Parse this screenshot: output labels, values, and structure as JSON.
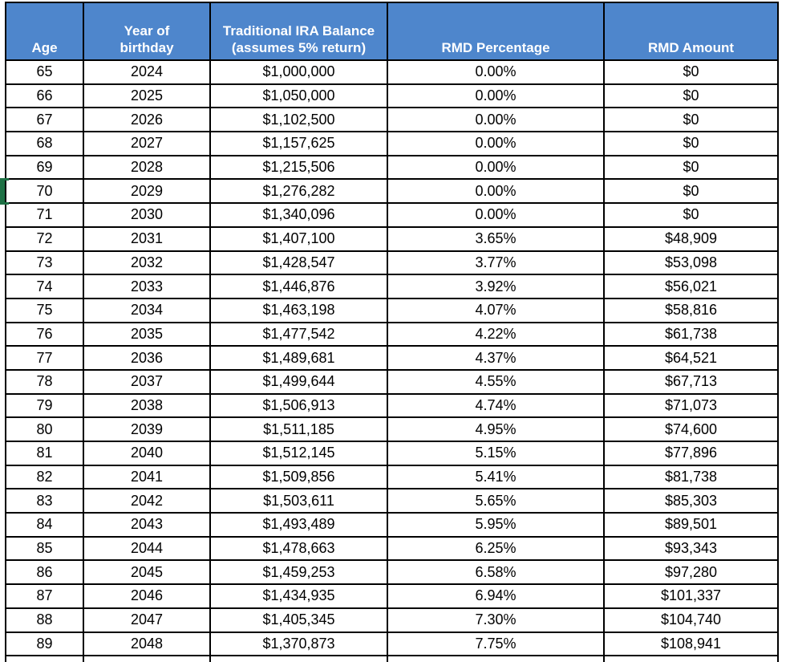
{
  "table": {
    "headers": [
      "Age",
      "Year of\nbirthday",
      "Traditional IRA Balance\n(assumes 5% return)",
      "RMD Percentage",
      "RMD Amount"
    ],
    "rows": [
      [
        "65",
        "2024",
        "$1,000,000",
        "0.00%",
        "$0"
      ],
      [
        "66",
        "2025",
        "$1,050,000",
        "0.00%",
        "$0"
      ],
      [
        "67",
        "2026",
        "$1,102,500",
        "0.00%",
        "$0"
      ],
      [
        "68",
        "2027",
        "$1,157,625",
        "0.00%",
        "$0"
      ],
      [
        "69",
        "2028",
        "$1,215,506",
        "0.00%",
        "$0"
      ],
      [
        "70",
        "2029",
        "$1,276,282",
        "0.00%",
        "$0"
      ],
      [
        "71",
        "2030",
        "$1,340,096",
        "0.00%",
        "$0"
      ],
      [
        "72",
        "2031",
        "$1,407,100",
        "3.65%",
        "$48,909"
      ],
      [
        "73",
        "2032",
        "$1,428,547",
        "3.77%",
        "$53,098"
      ],
      [
        "74",
        "2033",
        "$1,446,876",
        "3.92%",
        "$56,021"
      ],
      [
        "75",
        "2034",
        "$1,463,198",
        "4.07%",
        "$58,816"
      ],
      [
        "76",
        "2035",
        "$1,477,542",
        "4.22%",
        "$61,738"
      ],
      [
        "77",
        "2036",
        "$1,489,681",
        "4.37%",
        "$64,521"
      ],
      [
        "78",
        "2037",
        "$1,499,644",
        "4.55%",
        "$67,713"
      ],
      [
        "79",
        "2038",
        "$1,506,913",
        "4.74%",
        "$71,073"
      ],
      [
        "80",
        "2039",
        "$1,511,185",
        "4.95%",
        "$74,600"
      ],
      [
        "81",
        "2040",
        "$1,512,145",
        "5.15%",
        "$77,896"
      ],
      [
        "82",
        "2041",
        "$1,509,856",
        "5.41%",
        "$81,738"
      ],
      [
        "83",
        "2042",
        "$1,503,611",
        "5.65%",
        "$85,303"
      ],
      [
        "84",
        "2043",
        "$1,493,489",
        "5.95%",
        "$89,501"
      ],
      [
        "85",
        "2044",
        "$1,478,663",
        "6.25%",
        "$93,343"
      ],
      [
        "86",
        "2045",
        "$1,459,253",
        "6.58%",
        "$97,280"
      ],
      [
        "87",
        "2046",
        "$1,434,935",
        "6.94%",
        "$101,337"
      ],
      [
        "88",
        "2047",
        "$1,405,345",
        "7.30%",
        "$104,740"
      ],
      [
        "89",
        "2048",
        "$1,370,873",
        "7.75%",
        "$108,941"
      ]
    ]
  },
  "selection": {
    "marker_row_age": "70"
  },
  "colors": {
    "header_bg": "#4E86CC",
    "header_text": "#FFFFFF",
    "grid_line": "#000000",
    "cell_bg": "#FFFFFF",
    "body_text": "#000000",
    "selection_green": "#1E7145"
  }
}
